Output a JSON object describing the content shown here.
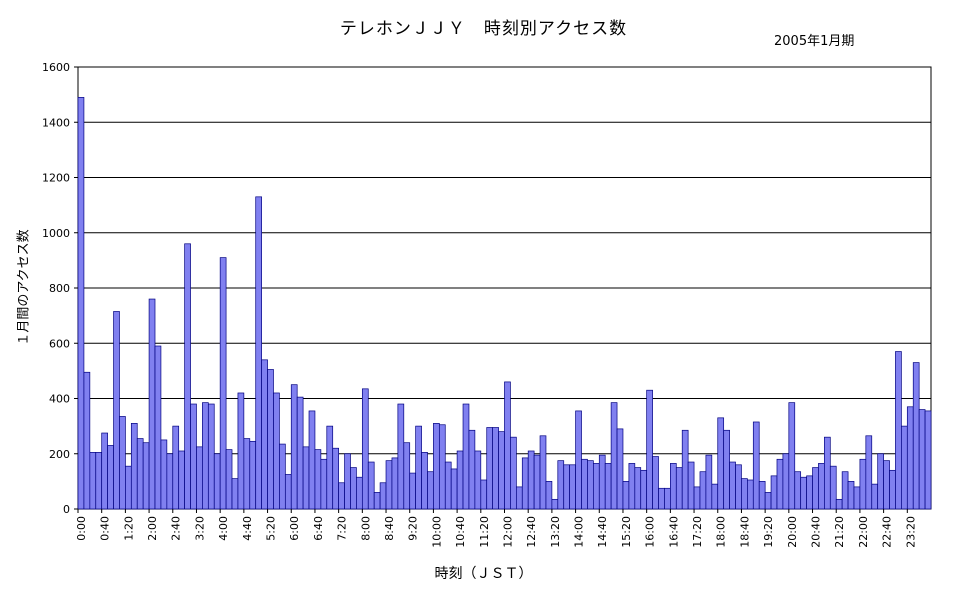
{
  "chart_data": {
    "type": "bar",
    "title": "テレホンＪＪＹ　時刻別アクセス数",
    "subtitle": "2005年1月期",
    "xlabel": "時刻（ＪＳＴ）",
    "ylabel": "１月間のアクセス数",
    "ylim": [
      0,
      1600
    ],
    "yticks": [
      0,
      200,
      400,
      600,
      800,
      1000,
      1200,
      1400,
      1600
    ],
    "grid": true,
    "bar_color": "#8080f0",
    "bar_stroke": "#000080",
    "interval_minutes": 10,
    "x_tick_labels": [
      "0:00",
      "0:40",
      "1:20",
      "2:00",
      "2:40",
      "3:20",
      "4:00",
      "4:40",
      "5:20",
      "6:00",
      "6:40",
      "7:20",
      "8:00",
      "8:40",
      "9:20",
      "10:00",
      "10:40",
      "11:20",
      "12:00",
      "12:40",
      "13:20",
      "14:00",
      "14:40",
      "15:20",
      "16:00",
      "16:40",
      "17:20",
      "18:00",
      "18:40",
      "19:20",
      "20:00",
      "20:40",
      "21:20",
      "22:00",
      "22:40",
      "23:20"
    ],
    "values": [
      1490,
      495,
      205,
      205,
      275,
      230,
      715,
      335,
      155,
      310,
      255,
      240,
      760,
      590,
      250,
      200,
      300,
      210,
      960,
      380,
      225,
      385,
      380,
      200,
      910,
      215,
      110,
      420,
      255,
      245,
      1130,
      540,
      505,
      420,
      235,
      125,
      450,
      405,
      225,
      355,
      215,
      180,
      300,
      220,
      95,
      200,
      150,
      115,
      435,
      170,
      60,
      95,
      175,
      185,
      380,
      240,
      130,
      300,
      205,
      135,
      310,
      305,
      170,
      145,
      210,
      380,
      285,
      210,
      105,
      295,
      295,
      280,
      460,
      260,
      80,
      185,
      210,
      195,
      265,
      100,
      35,
      175,
      160,
      160,
      355,
      180,
      175,
      165,
      195,
      165,
      385,
      290,
      100,
      165,
      150,
      140,
      430,
      190,
      75,
      75,
      165,
      150,
      285,
      170,
      80,
      135,
      195,
      90,
      330,
      285,
      170,
      160,
      110,
      105,
      315,
      100,
      60,
      120,
      180,
      200,
      385,
      135,
      115,
      120,
      150,
      165,
      260,
      155,
      35,
      135,
      100,
      80,
      180,
      265,
      90,
      200,
      175,
      140,
      570,
      300,
      370,
      530,
      360,
      355
    ]
  }
}
